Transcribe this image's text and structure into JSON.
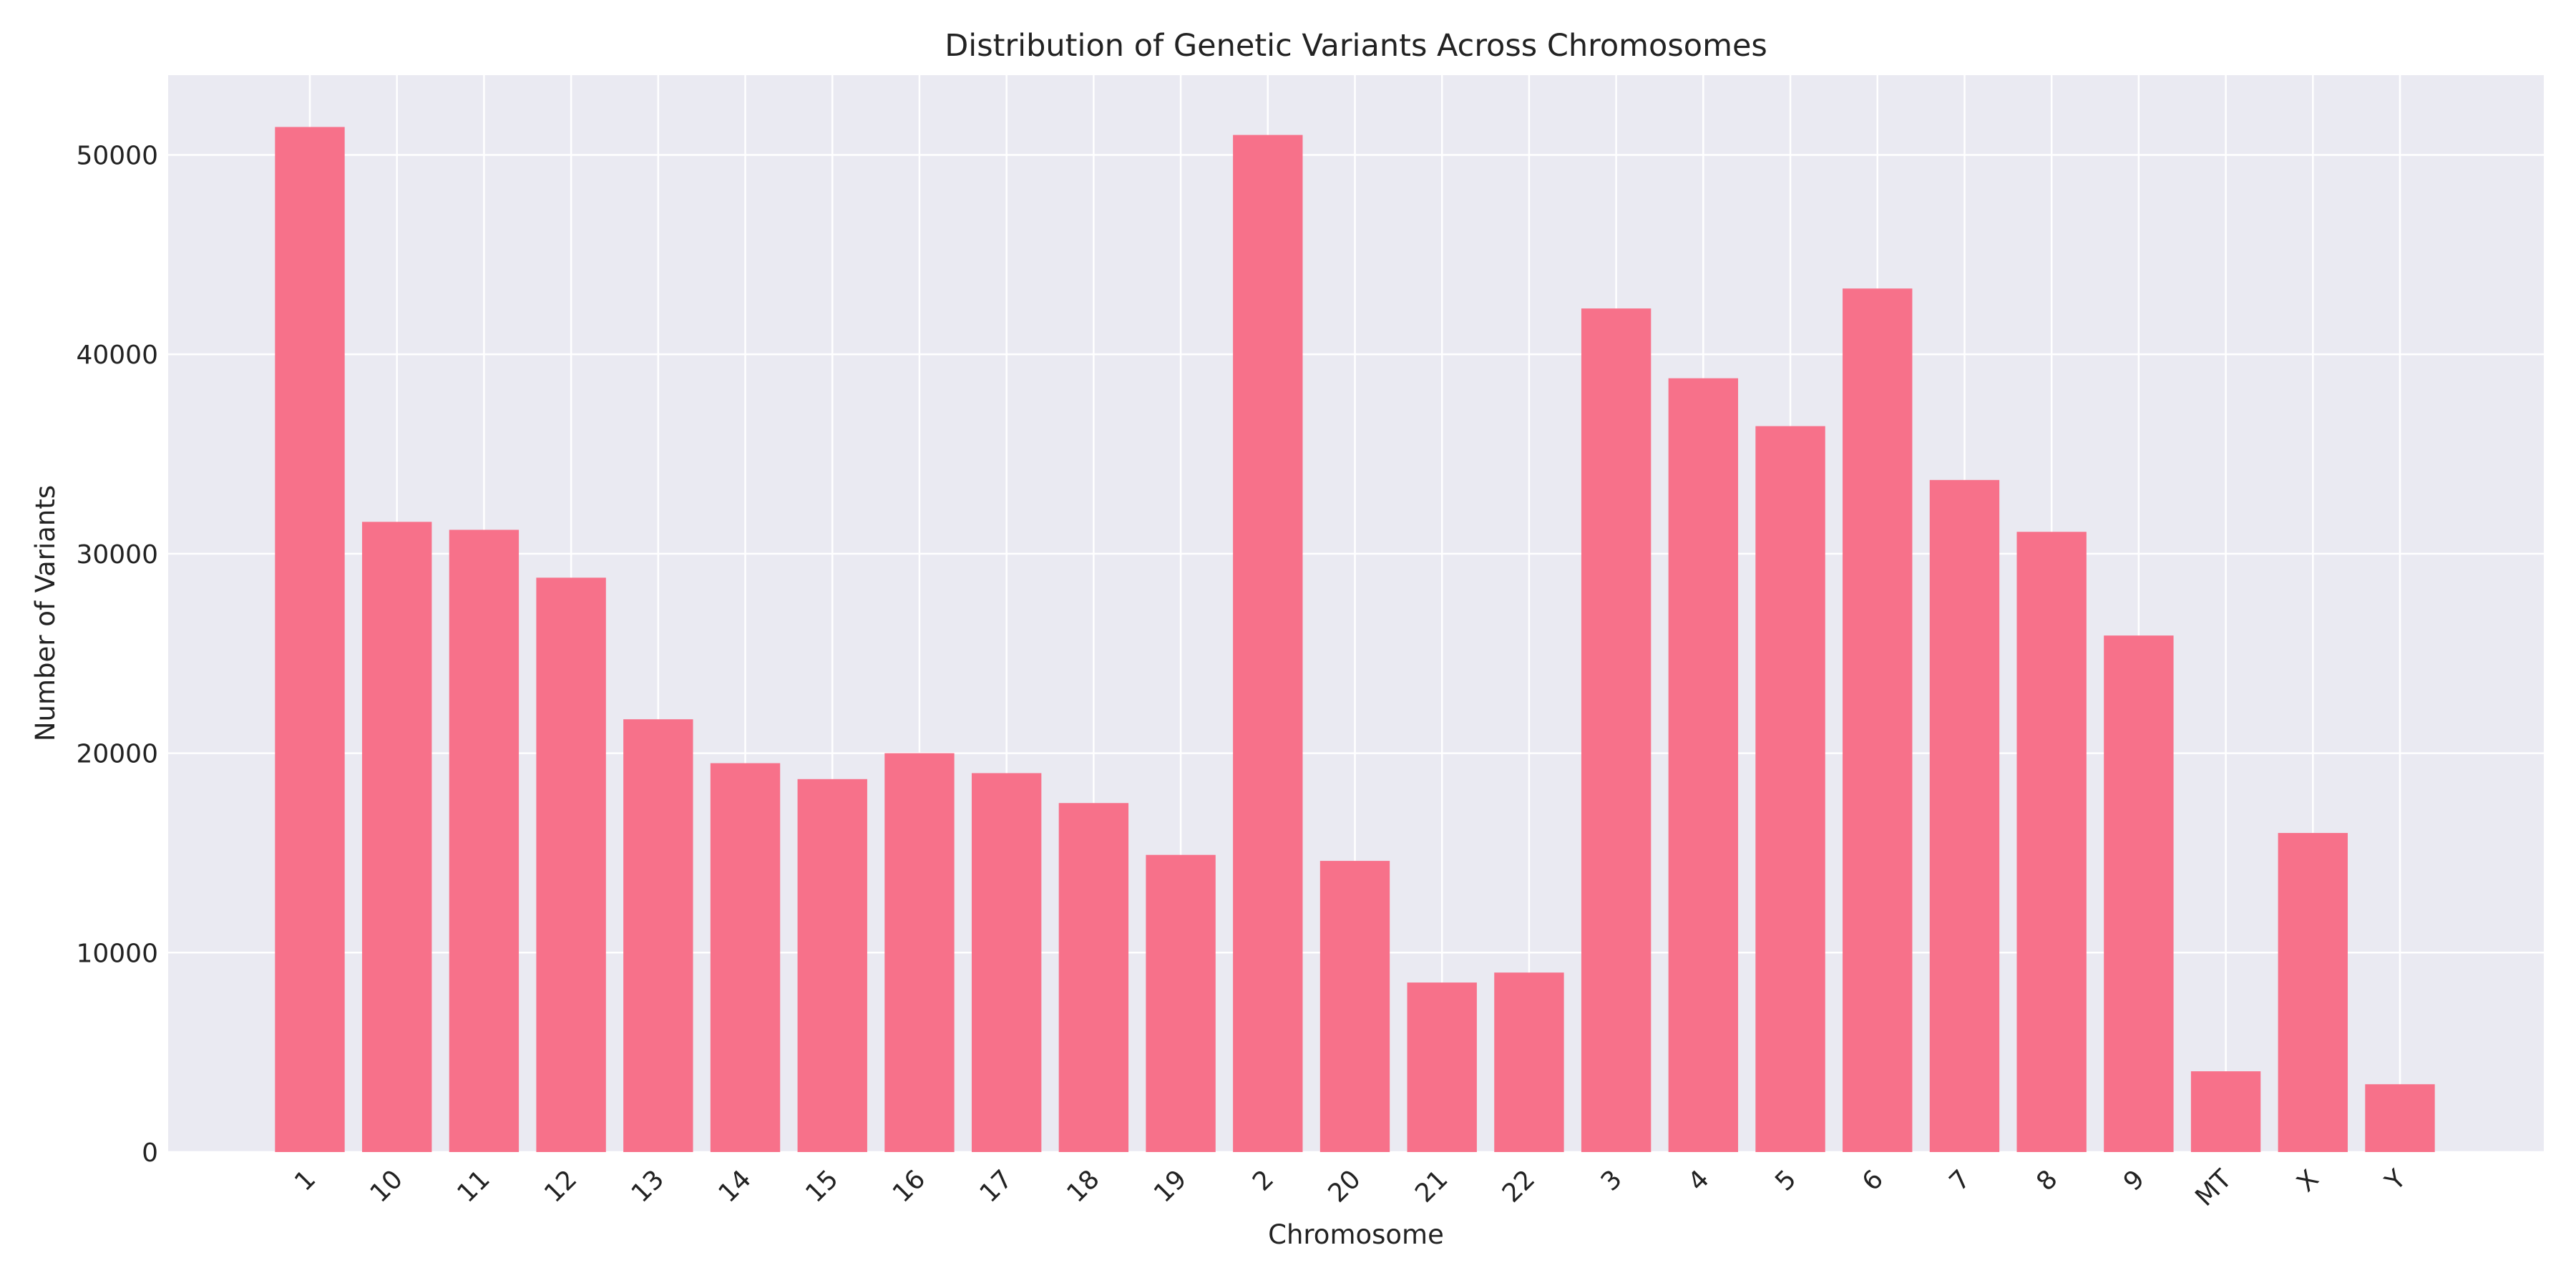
{
  "chart_data": {
    "type": "bar",
    "title": "Distribution of Genetic Variants Across Chromosomes",
    "xlabel": "Chromosome",
    "ylabel": "Number of Variants",
    "categories": [
      "1",
      "10",
      "11",
      "12",
      "13",
      "14",
      "15",
      "16",
      "17",
      "18",
      "19",
      "2",
      "20",
      "21",
      "22",
      "3",
      "4",
      "5",
      "6",
      "7",
      "8",
      "9",
      "MT",
      "X",
      "Y"
    ],
    "values": [
      51400,
      31600,
      31200,
      28800,
      21700,
      19500,
      18700,
      20000,
      19000,
      17500,
      14900,
      51000,
      14600,
      8500,
      9000,
      42300,
      38800,
      36400,
      43300,
      33700,
      31100,
      25900,
      4050,
      16000,
      3400
    ],
    "ylim": [
      0,
      54000
    ],
    "yticks": [
      0,
      10000,
      20000,
      30000,
      40000,
      50000
    ],
    "grid": true,
    "colors": {
      "bar": "#f7718a",
      "plot_background": "#eaeaf2",
      "grid": "#ffffff",
      "text": "#222222"
    }
  }
}
